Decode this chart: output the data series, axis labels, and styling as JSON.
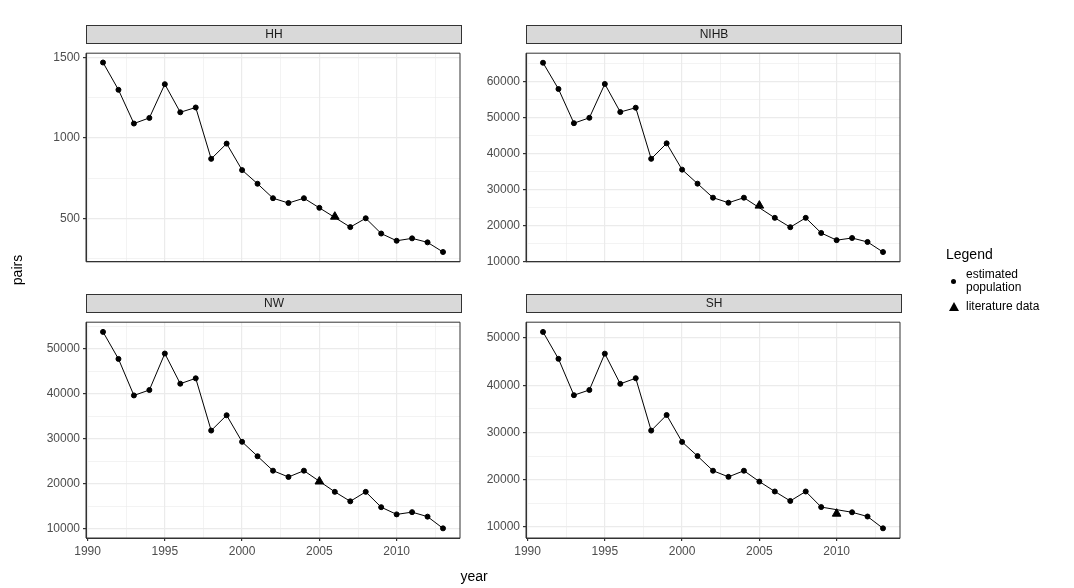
{
  "chart_data": [
    {
      "type": "line",
      "title": "HH",
      "ylabel": "pairs",
      "xlim": [
        1989.9,
        2014.1
      ],
      "xticks": [
        1990,
        {
          "value": 1992.5,
          "label": null
        },
        1995,
        {
          "value": 1997.5,
          "label": null
        },
        2000,
        {
          "value": 2002.5,
          "label": null
        },
        2005,
        {
          "value": 2007.5,
          "label": null
        },
        2010,
        {
          "value": 2012.5,
          "label": null
        }
      ],
      "ylim": [
        229,
        1528
      ],
      "yticks": [
        {
          "value": 250,
          "label": null
        },
        500,
        {
          "value": 750,
          "label": null
        },
        1000,
        {
          "value": 1250,
          "label": null
        },
        1500
      ],
      "grid": true,
      "tick_labels": "y",
      "series": [
        {
          "type": "line",
          "marker": "circle",
          "color": "#000000",
          "x": [
            1991,
            1992,
            1993,
            1994,
            1995,
            1996,
            1997,
            1998,
            1999,
            2000,
            2001,
            2002,
            2003,
            2004,
            2005,
            2006,
            2007,
            2008,
            2009,
            2010,
            2011,
            2012,
            2013
          ],
          "values": [
            1470,
            1300,
            1090,
            1125,
            1335,
            1160,
            1190,
            870,
            965,
            800,
            715,
            625,
            595,
            625,
            565,
            null,
            445,
            500,
            405,
            360,
            375,
            350,
            290
          ]
        },
        {
          "type": "scatter",
          "marker": "triangle",
          "color": "#000000",
          "x": [
            2006
          ],
          "values": [
            510
          ]
        }
      ]
    },
    {
      "type": "line",
      "title": "NIHB",
      "legend": "right",
      "legend_title": "Legend",
      "xlim": [
        1989.9,
        2014.1
      ],
      "xticks": [
        1990,
        {
          "value": 1992.5,
          "label": null
        },
        1995,
        {
          "value": 1997.5,
          "label": null
        },
        2000,
        {
          "value": 2002.5,
          "label": null
        },
        2005,
        {
          "value": 2007.5,
          "label": null
        },
        2010,
        {
          "value": 2012.5,
          "label": null
        }
      ],
      "ylim": [
        9990,
        67950
      ],
      "yticks": [
        10000,
        {
          "value": 15000,
          "label": null
        },
        20000,
        {
          "value": 25000,
          "label": null
        },
        30000,
        {
          "value": 35000,
          "label": null
        },
        40000,
        {
          "value": 45000,
          "label": null
        },
        50000,
        {
          "value": 55000,
          "label": null
        },
        60000,
        {
          "value": 65000,
          "label": null
        }
      ],
      "grid": true,
      "tick_labels": "y",
      "series": [
        {
          "name": "estimated population",
          "type": "line",
          "marker": "circle",
          "color": "#000000",
          "x": [
            1991,
            1992,
            1993,
            1994,
            1995,
            1996,
            1997,
            1998,
            1999,
            2000,
            2001,
            2002,
            2003,
            2004,
            2005,
            2006,
            2007,
            2008,
            2009,
            2010,
            2011,
            2012,
            2013
          ],
          "values": [
            65300,
            58000,
            48500,
            50000,
            59400,
            51600,
            52800,
            38600,
            42900,
            35600,
            31700,
            27800,
            26400,
            27800,
            null,
            22200,
            19600,
            22200,
            18000,
            16000,
            16600,
            15500,
            12700
          ]
        },
        {
          "name": "literature data",
          "type": "scatter",
          "marker": "triangle",
          "color": "#000000",
          "x": [
            2005
          ],
          "values": [
            25600
          ]
        }
      ]
    },
    {
      "type": "line",
      "title": "NW",
      "xlabel": "year",
      "xlim": [
        1989.9,
        2014.1
      ],
      "xticks": [
        1990,
        {
          "value": 1992.5,
          "label": null
        },
        1995,
        {
          "value": 1997.5,
          "label": null
        },
        2000,
        {
          "value": 2002.5,
          "label": null
        },
        2005,
        {
          "value": 2007.5,
          "label": null
        },
        2010,
        {
          "value": 2012.5,
          "label": null
        }
      ],
      "ylim": [
        7960,
        55850
      ],
      "yticks": [
        10000,
        {
          "value": 15000,
          "label": null
        },
        20000,
        {
          "value": 25000,
          "label": null
        },
        30000,
        {
          "value": 35000,
          "label": null
        },
        40000,
        {
          "value": 45000,
          "label": null
        },
        50000,
        {
          "value": 55000,
          "label": null
        }
      ],
      "grid": true,
      "series": [
        {
          "type": "line",
          "marker": "circle",
          "color": "#000000",
          "x": [
            1991,
            1992,
            1993,
            1994,
            1995,
            1996,
            1997,
            1998,
            1999,
            2000,
            2001,
            2002,
            2003,
            2004,
            2005,
            2006,
            2007,
            2008,
            2009,
            2010,
            2011,
            2012,
            2013
          ],
          "values": [
            53700,
            47700,
            39600,
            40800,
            48900,
            42200,
            43400,
            31800,
            35200,
            29300,
            26100,
            22900,
            21500,
            22900,
            null,
            18200,
            16100,
            18200,
            14800,
            13200,
            13700,
            12700,
            10100
          ]
        },
        {
          "type": "scatter",
          "marker": "triangle",
          "color": "#000000",
          "x": [
            2005
          ],
          "values": [
            20500
          ]
        }
      ]
    },
    {
      "type": "line",
      "title": "SH",
      "xlim": [
        1989.9,
        2014.1
      ],
      "xticks": [
        1990,
        {
          "value": 1992.5,
          "label": null
        },
        1995,
        {
          "value": 1997.5,
          "label": null
        },
        2000,
        {
          "value": 2002.5,
          "label": null
        },
        2005,
        {
          "value": 2007.5,
          "label": null
        },
        2010,
        {
          "value": 2012.5,
          "label": null
        }
      ],
      "ylim": [
        7650,
        53360
      ],
      "yticks": [
        10000,
        {
          "value": 15000,
          "label": null
        },
        20000,
        {
          "value": 25000,
          "label": null
        },
        30000,
        {
          "value": 35000,
          "label": null
        },
        40000,
        {
          "value": 45000,
          "label": null
        },
        50000
      ],
      "grid": true,
      "series": [
        {
          "type": "line",
          "marker": "circle",
          "color": "#000000",
          "x": [
            1991,
            1992,
            1993,
            1994,
            1995,
            1996,
            1997,
            1998,
            1999,
            2000,
            2001,
            2002,
            2003,
            2004,
            2005,
            2006,
            2007,
            2008,
            2009,
            2010,
            2011,
            2012,
            2013
          ],
          "values": [
            51300,
            45600,
            37900,
            39000,
            46700,
            40300,
            41500,
            30400,
            33700,
            28000,
            25000,
            21900,
            20600,
            21900,
            19600,
            17500,
            15500,
            17500,
            14200,
            null,
            13100,
            12200,
            9700
          ]
        },
        {
          "type": "scatter",
          "marker": "triangle",
          "color": "#000000",
          "x": [
            2010
          ],
          "values": [
            12800
          ]
        }
      ]
    }
  ]
}
